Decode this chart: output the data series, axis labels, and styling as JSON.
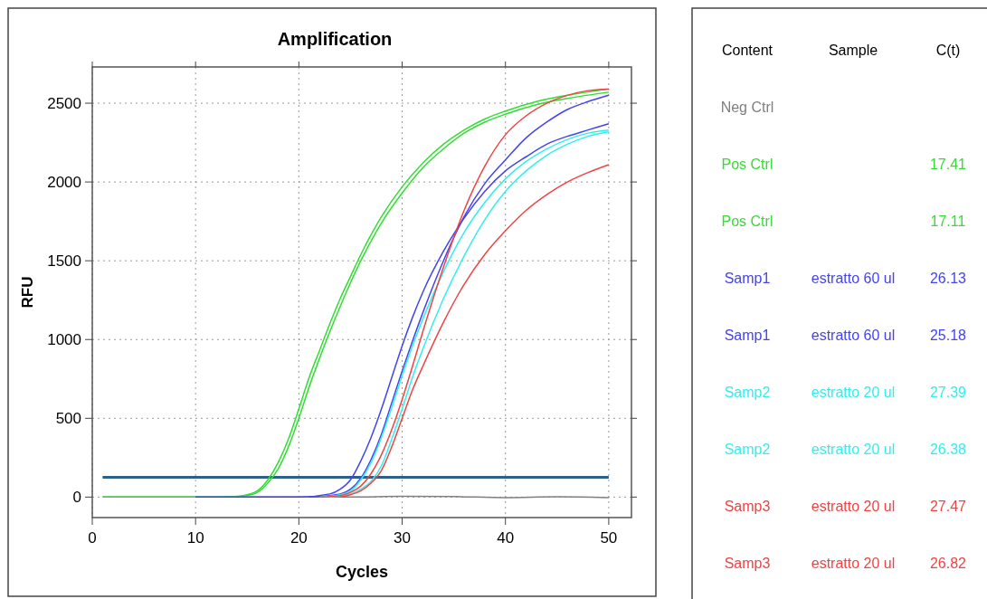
{
  "chart_data": [
    {
      "type": "line",
      "title": "Amplification",
      "xlabel": "Cycles",
      "ylabel": "RFU",
      "xlim": [
        0,
        52.2
      ],
      "ylim": [
        -130,
        2730
      ],
      "xticks": [
        0,
        10,
        20,
        30,
        40,
        50
      ],
      "yticks": [
        0,
        500,
        1000,
        1500,
        2000,
        2500
      ],
      "grid": true,
      "line_style": "solid",
      "marker": "none",
      "ref_lines": [
        {
          "axis": "y",
          "value": 126,
          "color": "#2e5f8a"
        }
      ],
      "series": [
        {
          "color": "#808080",
          "x": [
            1,
            10,
            20,
            25,
            30,
            35,
            40,
            45,
            50
          ],
          "values": [
            0,
            0,
            0,
            0,
            5,
            3,
            -3,
            2,
            -3
          ]
        },
        {
          "color": "#33dd33",
          "x": [
            1,
            10,
            14,
            15,
            16,
            17,
            18,
            19,
            20,
            21,
            22,
            23,
            24,
            25,
            26,
            28,
            30,
            32,
            34,
            36,
            38,
            40,
            43,
            46,
            50
          ],
          "values": [
            0,
            0,
            5,
            15,
            40,
            110,
            220,
            370,
            560,
            760,
            930,
            1100,
            1260,
            1400,
            1540,
            1780,
            1970,
            2120,
            2240,
            2330,
            2400,
            2450,
            2510,
            2550,
            2590
          ]
        },
        {
          "color": "#33dd33",
          "x": [
            13,
            14,
            15,
            16,
            17,
            18,
            19,
            20,
            21,
            22,
            23,
            24,
            25,
            26,
            28,
            30,
            32,
            34,
            36,
            38,
            40,
            43,
            46,
            50
          ],
          "values": [
            0,
            3,
            10,
            30,
            90,
            180,
            320,
            500,
            700,
            880,
            1050,
            1210,
            1360,
            1500,
            1740,
            1930,
            2090,
            2210,
            2310,
            2380,
            2430,
            2490,
            2530,
            2570
          ]
        },
        {
          "color": "#4444ee",
          "x": [
            10,
            20,
            23,
            24,
            25,
            26,
            27,
            28,
            29,
            30,
            31,
            32,
            34,
            36,
            38,
            40,
            42,
            44,
            46,
            48,
            50
          ],
          "values": [
            0,
            0,
            20,
            50,
            110,
            230,
            380,
            560,
            760,
            960,
            1140,
            1300,
            1560,
            1770,
            1940,
            2070,
            2160,
            2240,
            2290,
            2330,
            2370
          ]
        },
        {
          "color": "#4444ee",
          "x": [
            21,
            24,
            25,
            26,
            27,
            28,
            29,
            30,
            31,
            32,
            34,
            36,
            38,
            40,
            42,
            44,
            46,
            48,
            50
          ],
          "values": [
            0,
            20,
            50,
            120,
            240,
            400,
            600,
            800,
            990,
            1170,
            1500,
            1780,
            1990,
            2140,
            2280,
            2380,
            2460,
            2510,
            2550
          ]
        },
        {
          "color": "#33eeee",
          "x": [
            22,
            24,
            25,
            26,
            27,
            28,
            29,
            30,
            31,
            32,
            34,
            36,
            38,
            40,
            42,
            44,
            46,
            48,
            50
          ],
          "values": [
            0,
            15,
            40,
            110,
            220,
            380,
            570,
            770,
            960,
            1130,
            1430,
            1680,
            1870,
            2020,
            2130,
            2210,
            2270,
            2310,
            2330
          ]
        },
        {
          "color": "#33eeee",
          "x": [
            23,
            25,
            26,
            27,
            28,
            29,
            30,
            31,
            32,
            34,
            36,
            38,
            40,
            42,
            44,
            46,
            48,
            50
          ],
          "values": [
            0,
            20,
            50,
            100,
            200,
            370,
            560,
            760,
            940,
            1260,
            1530,
            1760,
            1940,
            2070,
            2170,
            2240,
            2290,
            2320
          ]
        },
        {
          "color": "#ee4444",
          "x": [
            22,
            24,
            25,
            26,
            27,
            28,
            29,
            30,
            31,
            32,
            34,
            36,
            38,
            40,
            42,
            44,
            46,
            48,
            50
          ],
          "values": [
            0,
            10,
            30,
            70,
            150,
            270,
            430,
            620,
            830,
            1050,
            1460,
            1820,
            2100,
            2300,
            2420,
            2500,
            2550,
            2580,
            2590
          ]
        },
        {
          "color": "#ee4444",
          "x": [
            24,
            25,
            26,
            27,
            28,
            29,
            30,
            31,
            32,
            34,
            36,
            38,
            40,
            42,
            44,
            46,
            48,
            50
          ],
          "values": [
            0,
            15,
            40,
            90,
            170,
            320,
            500,
            680,
            830,
            1110,
            1350,
            1540,
            1690,
            1820,
            1920,
            2000,
            2060,
            2110
          ]
        }
      ]
    },
    {
      "type": "other",
      "categories": [
        "Content",
        "Sample",
        "C(t)"
      ],
      "cell_labels": [
        [
          "Neg Ctrl",
          null,
          null
        ],
        [
          "Pos Ctrl",
          null,
          "17.41"
        ],
        [
          "Pos Ctrl",
          null,
          "17.11"
        ],
        [
          "Samp1",
          "estratto 60 ul",
          "26.13"
        ],
        [
          "Samp1",
          "estratto 60 ul",
          "25.18"
        ],
        [
          "Samp2",
          "estratto 20 ul",
          "27.39"
        ],
        [
          "Samp2",
          "estratto 20 ul",
          "26.38"
        ],
        [
          "Samp3",
          "estratto 20 ul",
          "27.47"
        ],
        [
          "Samp3",
          "estratto 20 ul",
          "26.82"
        ]
      ]
    }
  ]
}
